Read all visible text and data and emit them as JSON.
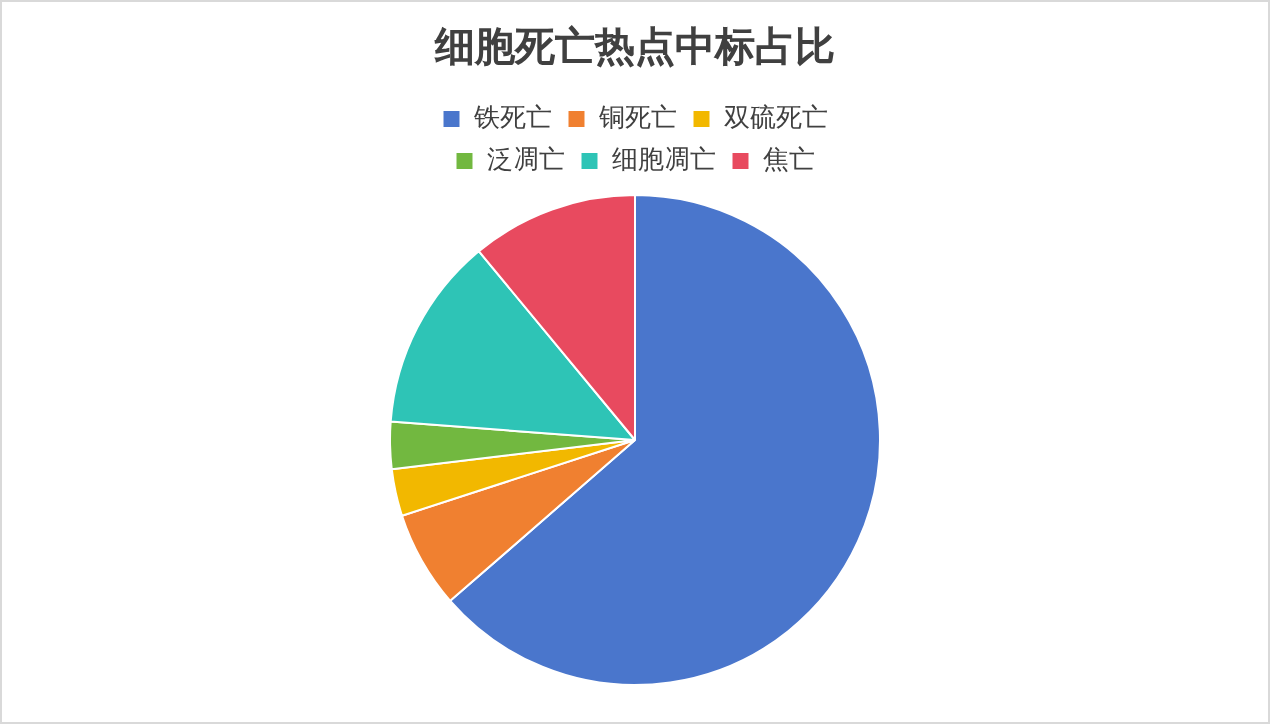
{
  "chart_data": {
    "type": "pie",
    "title": "细胞死亡热点中标占比",
    "categories": [
      "铁死亡",
      "铜死亡",
      "双硫死亡",
      "泛凋亡",
      "细胞凋亡",
      "焦亡"
    ],
    "values": [
      63.6,
      6.4,
      3.1,
      3.1,
      12.8,
      11.0
    ],
    "colors": [
      "#4a76cc",
      "#f08030",
      "#f2b800",
      "#72b840",
      "#2ec4b6",
      "#e84a5f"
    ],
    "legend": "top"
  }
}
